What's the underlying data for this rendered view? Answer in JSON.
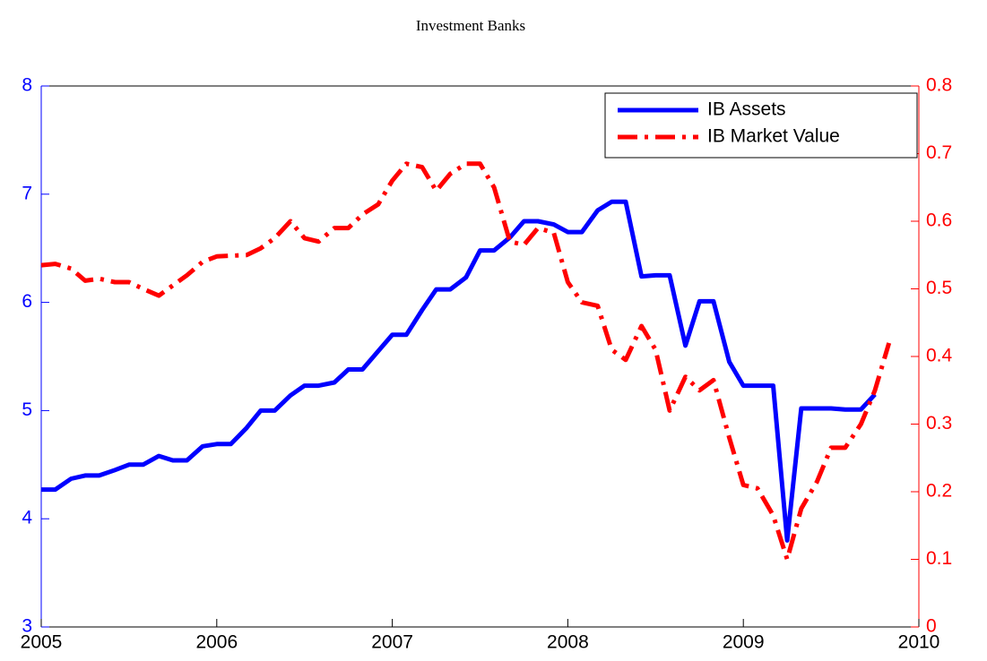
{
  "chart_data": {
    "type": "line",
    "title": "Investment Banks",
    "xlim": [
      2005,
      2010
    ],
    "xticks": [
      2005,
      2006,
      2007,
      2008,
      2009,
      2010
    ],
    "ylim": [
      3,
      8
    ],
    "yticks": [
      3,
      4,
      5,
      6,
      7,
      8
    ],
    "y2lim": [
      0,
      0.8
    ],
    "y2ticks": [
      0,
      0.1,
      0.2,
      0.3,
      0.4,
      0.5,
      0.6,
      0.7,
      0.8
    ],
    "legend": "upper right",
    "series": [
      {
        "name": "IB Assets",
        "color": "#0000ff",
        "style": "solid",
        "x": [
          2005.0,
          2005.08,
          2005.17,
          2005.25,
          2005.33,
          2005.42,
          2005.5,
          2005.58,
          2005.67,
          2005.75,
          2005.83,
          2005.92,
          2006.0,
          2006.08,
          2006.17,
          2006.25,
          2006.33,
          2006.42,
          2006.5,
          2006.58,
          2006.67,
          2006.75,
          2006.83,
          2006.92,
          2007.0,
          2007.08,
          2007.17,
          2007.25,
          2007.33,
          2007.42,
          2007.5,
          2007.58,
          2007.67,
          2007.75,
          2007.83,
          2007.92,
          2008.0,
          2008.08,
          2008.17,
          2008.25,
          2008.33,
          2008.42,
          2008.5,
          2008.58,
          2008.67,
          2008.75,
          2008.83,
          2008.92,
          2009.0,
          2009.08,
          2009.17,
          2009.25,
          2009.33,
          2009.42,
          2009.5,
          2009.58,
          2009.67,
          2009.75
        ],
        "values": [
          4.27,
          4.27,
          4.37,
          4.4,
          4.4,
          4.45,
          4.5,
          4.5,
          4.58,
          4.54,
          4.54,
          4.67,
          4.69,
          4.69,
          4.84,
          5.0,
          5.0,
          5.14,
          5.23,
          5.23,
          5.26,
          5.38,
          5.38,
          5.55,
          5.7,
          5.7,
          5.93,
          6.12,
          6.12,
          6.23,
          6.48,
          6.48,
          6.6,
          6.75,
          6.75,
          6.72,
          6.65,
          6.65,
          6.85,
          6.93,
          6.93,
          6.24,
          6.25,
          6.25,
          5.6,
          6.01,
          6.01,
          5.45,
          5.23,
          5.23,
          5.23,
          3.8,
          5.02,
          5.02,
          5.02,
          5.01,
          5.01,
          5.15
        ]
      },
      {
        "name": "IB Market Value",
        "color": "#ff0000",
        "style": "dashdot",
        "axis": "y2",
        "x": [
          2005.0,
          2005.08,
          2005.17,
          2005.25,
          2005.33,
          2005.42,
          2005.5,
          2005.58,
          2005.67,
          2005.75,
          2005.83,
          2005.92,
          2006.0,
          2006.08,
          2006.17,
          2006.25,
          2006.33,
          2006.42,
          2006.5,
          2006.58,
          2006.67,
          2006.75,
          2006.83,
          2006.92,
          2007.0,
          2007.08,
          2007.17,
          2007.25,
          2007.33,
          2007.42,
          2007.5,
          2007.58,
          2007.67,
          2007.75,
          2007.83,
          2007.92,
          2008.0,
          2008.08,
          2008.17,
          2008.25,
          2008.33,
          2008.42,
          2008.5,
          2008.58,
          2008.67,
          2008.75,
          2008.83,
          2008.92,
          2009.0,
          2009.08,
          2009.17,
          2009.25,
          2009.33,
          2009.42,
          2009.5,
          2009.58,
          2009.67,
          2009.75,
          2009.83
        ],
        "values": [
          0.535,
          0.537,
          0.53,
          0.512,
          0.515,
          0.51,
          0.51,
          0.5,
          0.49,
          0.505,
          0.52,
          0.54,
          0.548,
          0.549,
          0.55,
          0.56,
          0.575,
          0.6,
          0.575,
          0.57,
          0.59,
          0.59,
          0.61,
          0.625,
          0.66,
          0.685,
          0.68,
          0.645,
          0.67,
          0.685,
          0.685,
          0.65,
          0.57,
          0.565,
          0.59,
          0.583,
          0.51,
          0.48,
          0.475,
          0.41,
          0.395,
          0.445,
          0.41,
          0.32,
          0.37,
          0.35,
          0.365,
          0.28,
          0.21,
          0.205,
          0.165,
          0.1,
          0.175,
          0.215,
          0.265,
          0.265,
          0.3,
          0.35,
          0.42
        ]
      }
    ]
  }
}
